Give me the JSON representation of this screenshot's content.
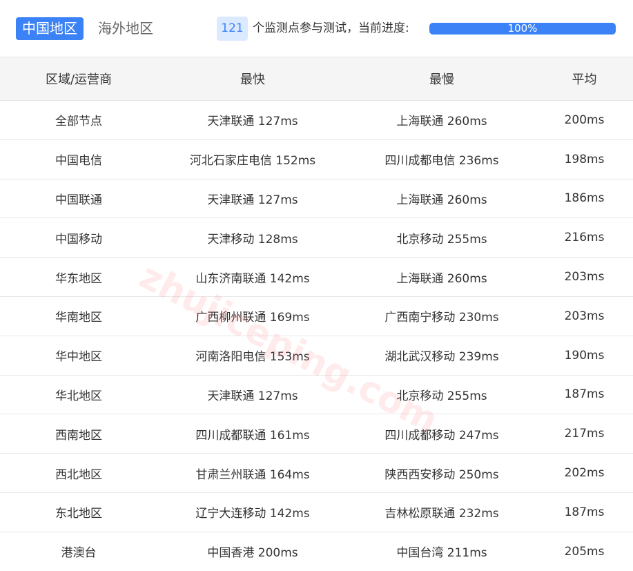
{
  "header": {
    "tabs": [
      "中国地区",
      "海外地区"
    ],
    "count": "121",
    "status_text": "个监测点参与测试，当前进度:",
    "progress": "100%"
  },
  "watermark": "zhujiceping.com",
  "table": {
    "columns": [
      "区域/运营商",
      "最快",
      "最慢",
      "平均"
    ],
    "rows": [
      [
        "全部节点",
        "天津联通 127ms",
        "上海联通 260ms",
        "200ms"
      ],
      [
        "中国电信",
        "河北石家庄电信 152ms",
        "四川成都电信 236ms",
        "198ms"
      ],
      [
        "中国联通",
        "天津联通 127ms",
        "上海联通 260ms",
        "186ms"
      ],
      [
        "中国移动",
        "天津移动 128ms",
        "北京移动 255ms",
        "216ms"
      ],
      [
        "华东地区",
        "山东济南联通 142ms",
        "上海联通 260ms",
        "203ms"
      ],
      [
        "华南地区",
        "广西柳州联通 169ms",
        "广西南宁移动 230ms",
        "203ms"
      ],
      [
        "华中地区",
        "河南洛阳电信 153ms",
        "湖北武汉移动 239ms",
        "190ms"
      ],
      [
        "华北地区",
        "天津联通 127ms",
        "北京移动 255ms",
        "187ms"
      ],
      [
        "西南地区",
        "四川成都联通 161ms",
        "四川成都移动 247ms",
        "217ms"
      ],
      [
        "西北地区",
        "甘肃兰州联通 164ms",
        "陕西西安移动 250ms",
        "202ms"
      ],
      [
        "东北地区",
        "辽宁大连移动 142ms",
        "吉林松原联通 232ms",
        "187ms"
      ],
      [
        "港澳台",
        "中国香港 200ms",
        "中国台湾 211ms",
        "205ms"
      ]
    ]
  }
}
